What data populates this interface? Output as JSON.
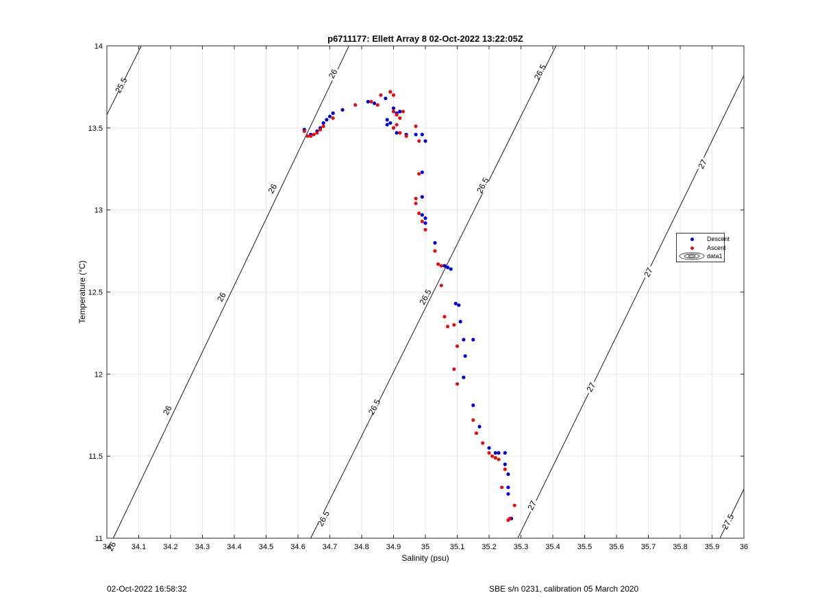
{
  "chart_data": {
    "type": "scatter",
    "title": "p6711177: Ellett Array 8 02-Oct-2022 13:22:05Z",
    "xlabel": "Salinity (psu)",
    "ylabel": "Temperature (°C)",
    "xlim": [
      34,
      36
    ],
    "ylim": [
      11,
      14
    ],
    "xticks": [
      "34",
      "34.1",
      "34.2",
      "34.3",
      "34.4",
      "34.5",
      "34.6",
      "34.7",
      "34.8",
      "34.9",
      "35",
      "35.1",
      "35.2",
      "35.3",
      "35.4",
      "35.5",
      "35.6",
      "35.7",
      "35.8",
      "35.9",
      "36"
    ],
    "yticks": [
      "11",
      "11.5",
      "12",
      "12.5",
      "13",
      "13.5",
      "14"
    ],
    "grid": true,
    "legend_position": "right",
    "colors": {
      "descent": "#0000cc",
      "ascent": "#dd1111",
      "contour": "#000000",
      "grid": "#e6e6e6"
    },
    "contours": [
      {
        "level": "25.5",
        "points": [
          [
            34.0,
            13.58
          ],
          [
            34.108,
            14.0
          ]
        ]
      },
      {
        "level": "26",
        "points": [
          [
            34.02,
            11.0
          ],
          [
            34.76,
            14.0
          ]
        ]
      },
      {
        "level": "26.5",
        "points": [
          [
            34.64,
            11.0
          ],
          [
            35.41,
            14.0
          ]
        ]
      },
      {
        "level": "27",
        "points": [
          [
            35.29,
            11.0
          ],
          [
            36.0,
            13.82
          ]
        ]
      },
      {
        "level": "27.5",
        "points": [
          [
            35.925,
            11.0
          ],
          [
            36.0,
            11.3
          ]
        ]
      }
    ],
    "contour_labels": [
      {
        "text": "25.5",
        "at": [
          34.045,
          13.76
        ]
      },
      {
        "text": "26",
        "at": [
          34.015,
          10.95
        ]
      },
      {
        "text": "26",
        "at": [
          34.19,
          11.78
        ]
      },
      {
        "text": "26",
        "at": [
          34.36,
          12.47
        ]
      },
      {
        "text": "26",
        "at": [
          34.52,
          13.13
        ]
      },
      {
        "text": "26",
        "at": [
          34.71,
          13.83
        ]
      },
      {
        "text": "26.5",
        "at": [
          34.68,
          11.12
        ]
      },
      {
        "text": "26.5",
        "at": [
          34.84,
          11.8
        ]
      },
      {
        "text": "26.5",
        "at": [
          35.0,
          12.47
        ]
      },
      {
        "text": "26.5",
        "at": [
          35.18,
          13.15
        ]
      },
      {
        "text": "26.5",
        "at": [
          35.36,
          13.84
        ]
      },
      {
        "text": "27",
        "at": [
          35.335,
          11.2
        ]
      },
      {
        "text": "27",
        "at": [
          35.52,
          11.92
        ]
      },
      {
        "text": "27",
        "at": [
          35.7,
          12.62
        ]
      },
      {
        "text": "27",
        "at": [
          35.87,
          13.28
        ]
      },
      {
        "text": "27.5",
        "at": [
          35.95,
          11.1
        ]
      }
    ],
    "series": [
      {
        "name": "Descent",
        "points": [
          [
            34.62,
            13.49
          ],
          [
            34.64,
            13.46
          ],
          [
            34.66,
            13.48
          ],
          [
            34.67,
            13.5
          ],
          [
            34.68,
            13.53
          ],
          [
            34.69,
            13.55
          ],
          [
            34.7,
            13.57
          ],
          [
            34.71,
            13.59
          ],
          [
            34.74,
            13.61
          ],
          [
            34.82,
            13.66
          ],
          [
            34.84,
            13.65
          ],
          [
            34.875,
            13.68
          ],
          [
            34.89,
            13.72
          ],
          [
            34.9,
            13.62
          ],
          [
            34.91,
            13.59
          ],
          [
            34.92,
            13.6
          ],
          [
            34.88,
            13.55
          ],
          [
            34.88,
            13.52
          ],
          [
            34.89,
            13.53
          ],
          [
            34.9,
            13.5
          ],
          [
            34.91,
            13.47
          ],
          [
            34.94,
            13.46
          ],
          [
            34.97,
            13.46
          ],
          [
            34.99,
            13.46
          ],
          [
            35.0,
            13.42
          ],
          [
            34.99,
            13.23
          ],
          [
            34.99,
            13.08
          ],
          [
            34.99,
            12.97
          ],
          [
            35.0,
            12.95
          ],
          [
            35.0,
            12.92
          ],
          [
            35.03,
            12.8
          ],
          [
            35.06,
            12.66
          ],
          [
            35.07,
            12.65
          ],
          [
            35.08,
            12.64
          ],
          [
            35.095,
            12.43
          ],
          [
            35.105,
            12.42
          ],
          [
            35.11,
            12.32
          ],
          [
            35.12,
            12.21
          ],
          [
            35.125,
            12.11
          ],
          [
            35.15,
            12.21
          ],
          [
            35.12,
            11.98
          ],
          [
            35.15,
            11.81
          ],
          [
            35.17,
            11.68
          ],
          [
            35.2,
            11.55
          ],
          [
            35.22,
            11.52
          ],
          [
            35.23,
            11.52
          ],
          [
            35.25,
            11.52
          ],
          [
            35.25,
            11.45
          ],
          [
            35.26,
            11.39
          ],
          [
            35.26,
            11.31
          ],
          [
            35.26,
            11.27
          ],
          [
            35.27,
            11.12
          ]
        ]
      },
      {
        "name": "Ascent",
        "points": [
          [
            34.62,
            13.48
          ],
          [
            34.63,
            13.45
          ],
          [
            34.64,
            13.45
          ],
          [
            34.65,
            13.46
          ],
          [
            34.66,
            13.47
          ],
          [
            34.67,
            13.49
          ],
          [
            34.68,
            13.51
          ],
          [
            34.71,
            13.56
          ],
          [
            34.78,
            13.64
          ],
          [
            34.83,
            13.66
          ],
          [
            34.85,
            13.64
          ],
          [
            34.86,
            13.7
          ],
          [
            34.89,
            13.72
          ],
          [
            34.9,
            13.7
          ],
          [
            34.9,
            13.6
          ],
          [
            34.91,
            13.58
          ],
          [
            34.93,
            13.6
          ],
          [
            34.92,
            13.56
          ],
          [
            34.91,
            13.52
          ],
          [
            34.9,
            13.5
          ],
          [
            34.92,
            13.47
          ],
          [
            34.94,
            13.45
          ],
          [
            34.97,
            13.51
          ],
          [
            34.98,
            13.42
          ],
          [
            34.98,
            13.22
          ],
          [
            34.97,
            13.07
          ],
          [
            34.97,
            13.04
          ],
          [
            34.98,
            12.98
          ],
          [
            34.99,
            12.93
          ],
          [
            35.0,
            12.88
          ],
          [
            35.03,
            12.75
          ],
          [
            35.04,
            12.67
          ],
          [
            35.05,
            12.66
          ],
          [
            35.05,
            12.54
          ],
          [
            35.06,
            12.35
          ],
          [
            35.07,
            12.29
          ],
          [
            35.09,
            12.3
          ],
          [
            35.1,
            12.17
          ],
          [
            35.09,
            12.03
          ],
          [
            35.1,
            11.94
          ],
          [
            35.15,
            11.72
          ],
          [
            35.16,
            11.64
          ],
          [
            35.18,
            11.58
          ],
          [
            35.2,
            11.52
          ],
          [
            35.21,
            11.5
          ],
          [
            35.22,
            11.49
          ],
          [
            35.23,
            11.48
          ],
          [
            35.25,
            11.42
          ],
          [
            35.24,
            11.31
          ],
          [
            35.26,
            11.11
          ],
          [
            35.265,
            11.12
          ],
          [
            35.28,
            11.2
          ]
        ]
      },
      {
        "name": "data1",
        "points": []
      }
    ]
  },
  "footer": {
    "left": "02-Oct-2022 16:58:32",
    "right": "SBE s/n 0231, calibration 05 March 2020"
  },
  "legend": {
    "items": [
      {
        "label": "Descent",
        "icon": "blue-dot-icon"
      },
      {
        "label": "Ascent",
        "icon": "red-dot-icon"
      },
      {
        "label": "data1",
        "icon": "contour-ellipse-icon"
      }
    ]
  }
}
